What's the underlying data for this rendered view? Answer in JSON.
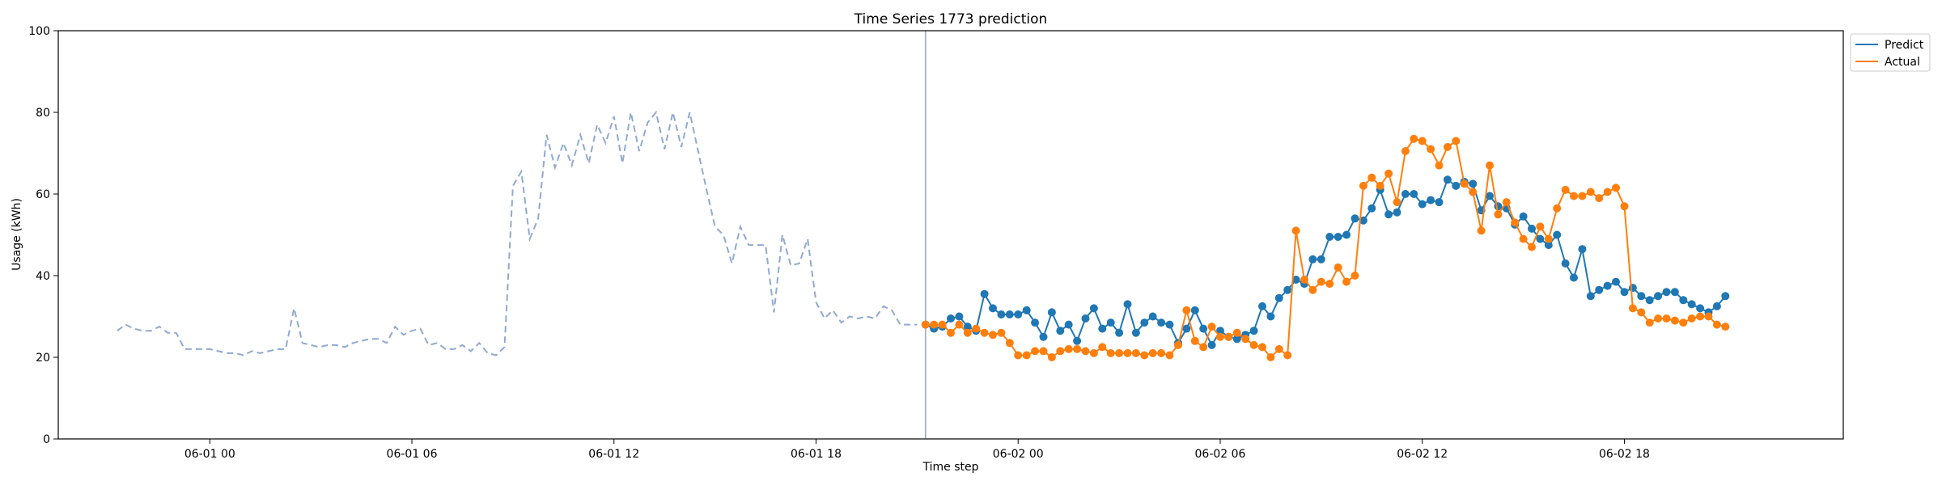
{
  "chart_data": {
    "type": "line",
    "title": "Time Series 1773 prediction",
    "xlabel": "Time step",
    "ylabel": "Usage (kWh)",
    "ylim": [
      0,
      100
    ],
    "yticks": [
      0,
      20,
      40,
      60,
      80,
      100
    ],
    "xlim_hours": [
      -4.5,
      48.5
    ],
    "x_ticks": [
      {
        "label": "06-01 00",
        "hour": 0
      },
      {
        "label": "06-01 06",
        "hour": 6
      },
      {
        "label": "06-01 12",
        "hour": 12
      },
      {
        "label": "06-01 18",
        "hour": 18
      },
      {
        "label": "06-02 00",
        "hour": 24
      },
      {
        "label": "06-02 06",
        "hour": 30
      },
      {
        "label": "06-02 12",
        "hour": 36
      },
      {
        "label": "06-02 18",
        "hour": 42
      }
    ],
    "x_step_hours": 0.25,
    "history_start_hour": -2.75,
    "forecast_start_hour": 21.25,
    "vline_hour": 21.25,
    "legend_position": "outside-top-right",
    "colors": {
      "history": "#8faad0",
      "predict": "#1f77b4",
      "actual": "#ff7f0e",
      "vline": "#8faad0"
    },
    "history": {
      "style": "dashed",
      "values": [
        26.5,
        28,
        27,
        26.5,
        26.5,
        27.5,
        26,
        26,
        22,
        22,
        22,
        22,
        21.5,
        21,
        21,
        20.5,
        21.5,
        21,
        21.5,
        22,
        22,
        32,
        23.5,
        23,
        22.5,
        23,
        23,
        22.5,
        23.5,
        24,
        24.5,
        24.5,
        23.5,
        27.5,
        25.5,
        26.5,
        27,
        23,
        23.5,
        22,
        22,
        23,
        21.5,
        23.5,
        21,
        20.5,
        22.5,
        62,
        65.5,
        49,
        54,
        74.5,
        66.5,
        72.5,
        67,
        74.5,
        67.5,
        77,
        72.5,
        79,
        67.5,
        80,
        70.5,
        77.5,
        80,
        71,
        80,
        71.5,
        80,
        70.5,
        61,
        52,
        50,
        43,
        52,
        47.5,
        47.5,
        47.5,
        31,
        50,
        42.5,
        43,
        49,
        33.5,
        29.5,
        31.5,
        28.5,
        30,
        29.5,
        30,
        29.5,
        32.5,
        31.5,
        28,
        28,
        28
      ]
    },
    "series": [
      {
        "name": "Predict",
        "values": [
          28,
          27,
          27.5,
          29.5,
          30,
          27.5,
          26.5,
          35.5,
          32,
          30.5,
          30.5,
          30.5,
          31.5,
          28.5,
          25,
          31,
          26.5,
          28,
          24,
          29.5,
          32,
          27,
          28.5,
          26,
          33,
          26,
          28.5,
          30,
          28.5,
          28,
          23.5,
          27,
          31.5,
          27,
          23,
          26.5,
          25,
          24.5,
          25.5,
          26.5,
          32.5,
          30,
          34.5,
          36.5,
          39,
          38,
          44,
          44,
          49.5,
          49.5,
          50,
          54,
          53.5,
          56.5,
          61,
          55,
          55.5,
          60,
          60,
          57.5,
          58.5,
          58,
          63.5,
          62,
          63,
          62.5,
          56,
          59.5,
          57,
          56.5,
          52.5,
          54.5,
          51.5,
          49,
          47.5,
          50,
          43,
          39.5,
          46.5,
          35,
          36.5,
          37.5,
          38.5,
          36,
          37,
          35,
          34,
          35,
          36,
          36,
          34,
          33,
          32,
          31,
          32.5,
          35
        ]
      },
      {
        "name": "Actual",
        "values": [
          28,
          28,
          28,
          26,
          28,
          26,
          27,
          26,
          25.5,
          26,
          23.5,
          20.5,
          20.5,
          21.5,
          21.5,
          20,
          21.5,
          22,
          22,
          21.5,
          21,
          22.5,
          21,
          21,
          21,
          21,
          20.5,
          21,
          21,
          20.5,
          23,
          31.5,
          24,
          22.5,
          27.5,
          25,
          25,
          26,
          24.5,
          23,
          22.5,
          20,
          22,
          20.5,
          51,
          39,
          36.5,
          38.5,
          38,
          42,
          38.5,
          40,
          62,
          64,
          62,
          65,
          58,
          70.5,
          73.5,
          73,
          71,
          67,
          71.5,
          73,
          62.5,
          60.5,
          51,
          67,
          55,
          58,
          53,
          49,
          47,
          52,
          49,
          56.5,
          61,
          59.5,
          59.5,
          60.5,
          59,
          60.5,
          61.5,
          57,
          32,
          31,
          28.5,
          29.5,
          29.5,
          29,
          28.5,
          29.5,
          30,
          30,
          28,
          27.5
        ]
      }
    ]
  }
}
